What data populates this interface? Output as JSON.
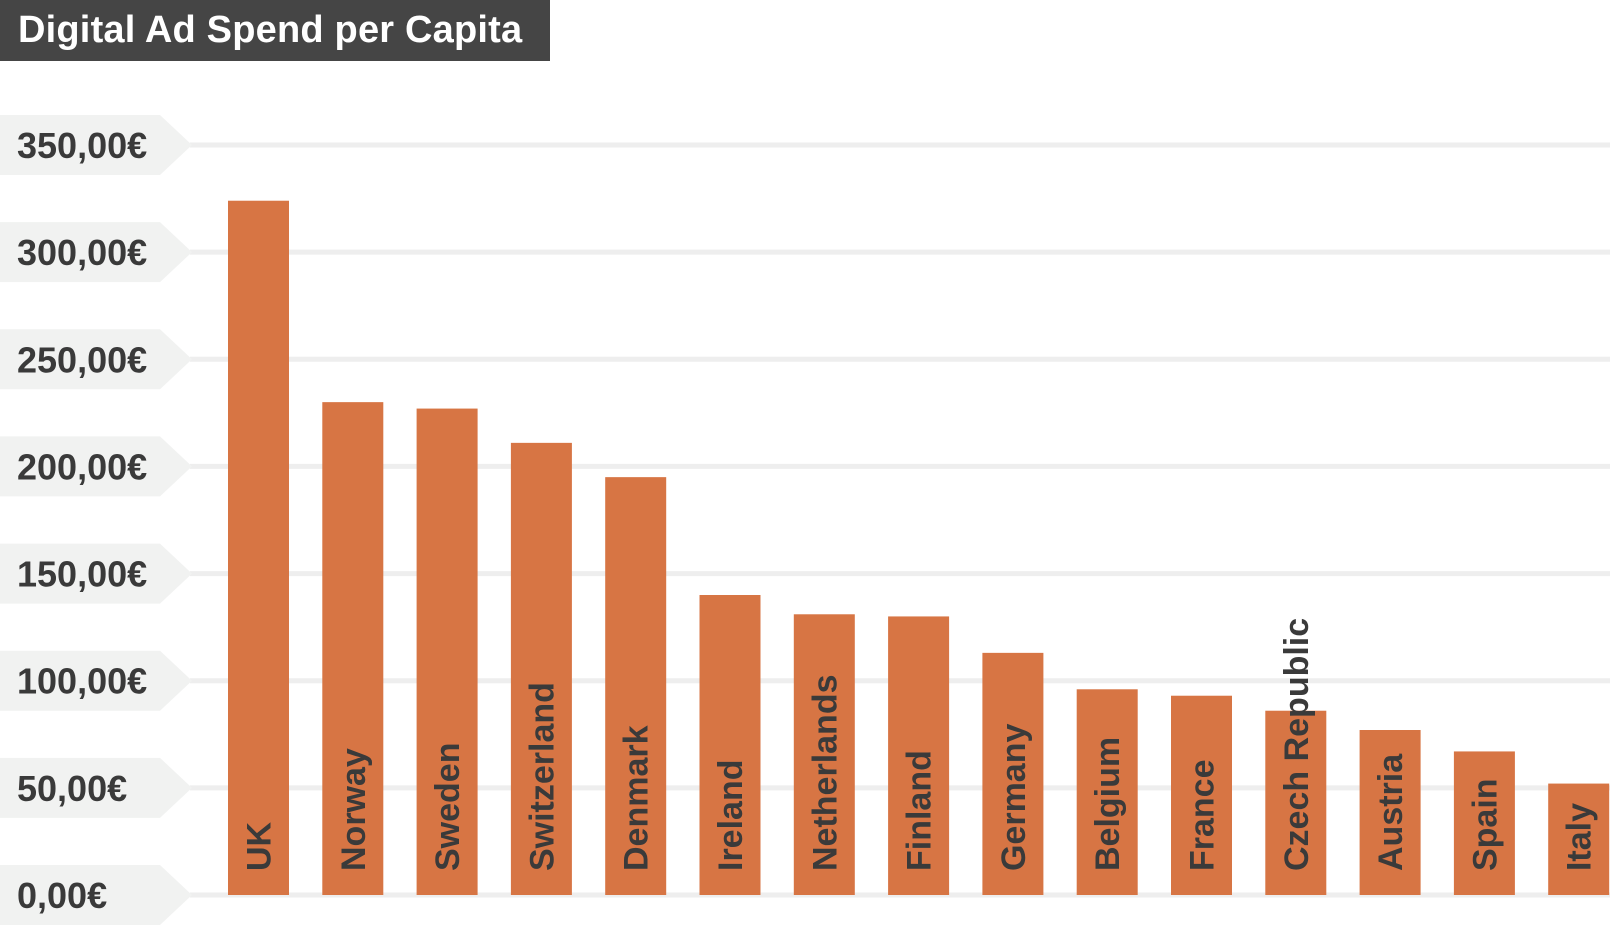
{
  "title": "Digital Ad Spend per Capita",
  "colors": {
    "bar": "#d77544",
    "title_bg": "#454545",
    "label_tab": "#f1f2f1",
    "grid": "#eeeeee",
    "text": "#3a3a3a"
  },
  "chart_data": {
    "type": "bar",
    "title": "Digital Ad Spend per Capita",
    "xlabel": "",
    "ylabel": "",
    "ylim": [
      0,
      350
    ],
    "grid": true,
    "legend": "none",
    "y_ticks": [
      0,
      50,
      100,
      150,
      200,
      250,
      300,
      350
    ],
    "y_tick_labels": [
      "0,00€",
      "50,00€",
      "100,00€",
      "150,00€",
      "200,00€",
      "250,00€",
      "300,00€",
      "350,00€"
    ],
    "categories": [
      "UK",
      "Norway",
      "Sweden",
      "Switzerland",
      "Denmark",
      "Ireland",
      "Netherlands",
      "Finland",
      "Germany",
      "Belgium",
      "France",
      "Czech Republic",
      "Austria",
      "Spain",
      "Italy"
    ],
    "values": [
      324,
      230,
      227,
      211,
      195,
      140,
      131,
      130,
      113,
      96,
      93,
      86,
      77,
      67,
      52
    ]
  }
}
